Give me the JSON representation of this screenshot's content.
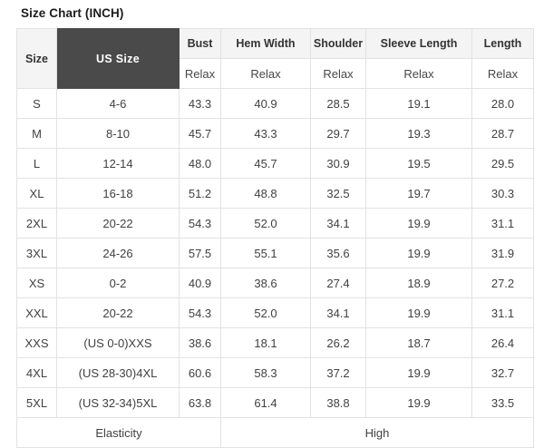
{
  "title": "Size Chart (INCH)",
  "colors": {
    "us_size_header_bg": "#4a4a4a",
    "us_size_header_text": "#ffffff",
    "column_header_bg": "#f4f4f4",
    "border": "#e2e2e2",
    "body_text": "#414141"
  },
  "table": {
    "header": {
      "size_label": "Size",
      "us_size_label": "US Size",
      "measure_columns": [
        "Bust",
        "Hem Width",
        "Shoulder",
        "Sleeve Length",
        "Length"
      ],
      "fit_labels": [
        "Relax",
        "Relax",
        "Relax",
        "Relax",
        "Relax"
      ]
    },
    "rows": [
      {
        "size": "S",
        "us_size": "4-6",
        "bust": "43.3",
        "hem_width": "40.9",
        "shoulder": "28.5",
        "sleeve_length": "19.1",
        "length": "28.0"
      },
      {
        "size": "M",
        "us_size": "8-10",
        "bust": "45.7",
        "hem_width": "43.3",
        "shoulder": "29.7",
        "sleeve_length": "19.3",
        "length": "28.7"
      },
      {
        "size": "L",
        "us_size": "12-14",
        "bust": "48.0",
        "hem_width": "45.7",
        "shoulder": "30.9",
        "sleeve_length": "19.5",
        "length": "29.5"
      },
      {
        "size": "XL",
        "us_size": "16-18",
        "bust": "51.2",
        "hem_width": "48.8",
        "shoulder": "32.5",
        "sleeve_length": "19.7",
        "length": "30.3"
      },
      {
        "size": "2XL",
        "us_size": "20-22",
        "bust": "54.3",
        "hem_width": "52.0",
        "shoulder": "34.1",
        "sleeve_length": "19.9",
        "length": "31.1"
      },
      {
        "size": "3XL",
        "us_size": "24-26",
        "bust": "57.5",
        "hem_width": "55.1",
        "shoulder": "35.6",
        "sleeve_length": "19.9",
        "length": "31.9"
      },
      {
        "size": "XS",
        "us_size": "0-2",
        "bust": "40.9",
        "hem_width": "38.6",
        "shoulder": "27.4",
        "sleeve_length": "18.9",
        "length": "27.2"
      },
      {
        "size": "XXL",
        "us_size": "20-22",
        "bust": "54.3",
        "hem_width": "52.0",
        "shoulder": "34.1",
        "sleeve_length": "19.9",
        "length": "31.1"
      },
      {
        "size": "XXS",
        "us_size": "(US 0-0)XXS",
        "bust": "38.6",
        "hem_width": "18.1",
        "shoulder": "26.2",
        "sleeve_length": "18.7",
        "length": "26.4"
      },
      {
        "size": "4XL",
        "us_size": "(US 28-30)4XL",
        "bust": "60.6",
        "hem_width": "58.3",
        "shoulder": "37.2",
        "sleeve_length": "19.9",
        "length": "32.7"
      },
      {
        "size": "5XL",
        "us_size": "(US 32-34)5XL",
        "bust": "63.8",
        "hem_width": "61.4",
        "shoulder": "38.8",
        "sleeve_length": "19.9",
        "length": "33.5"
      }
    ],
    "footer": {
      "left": "Elasticity",
      "right": "High"
    }
  }
}
